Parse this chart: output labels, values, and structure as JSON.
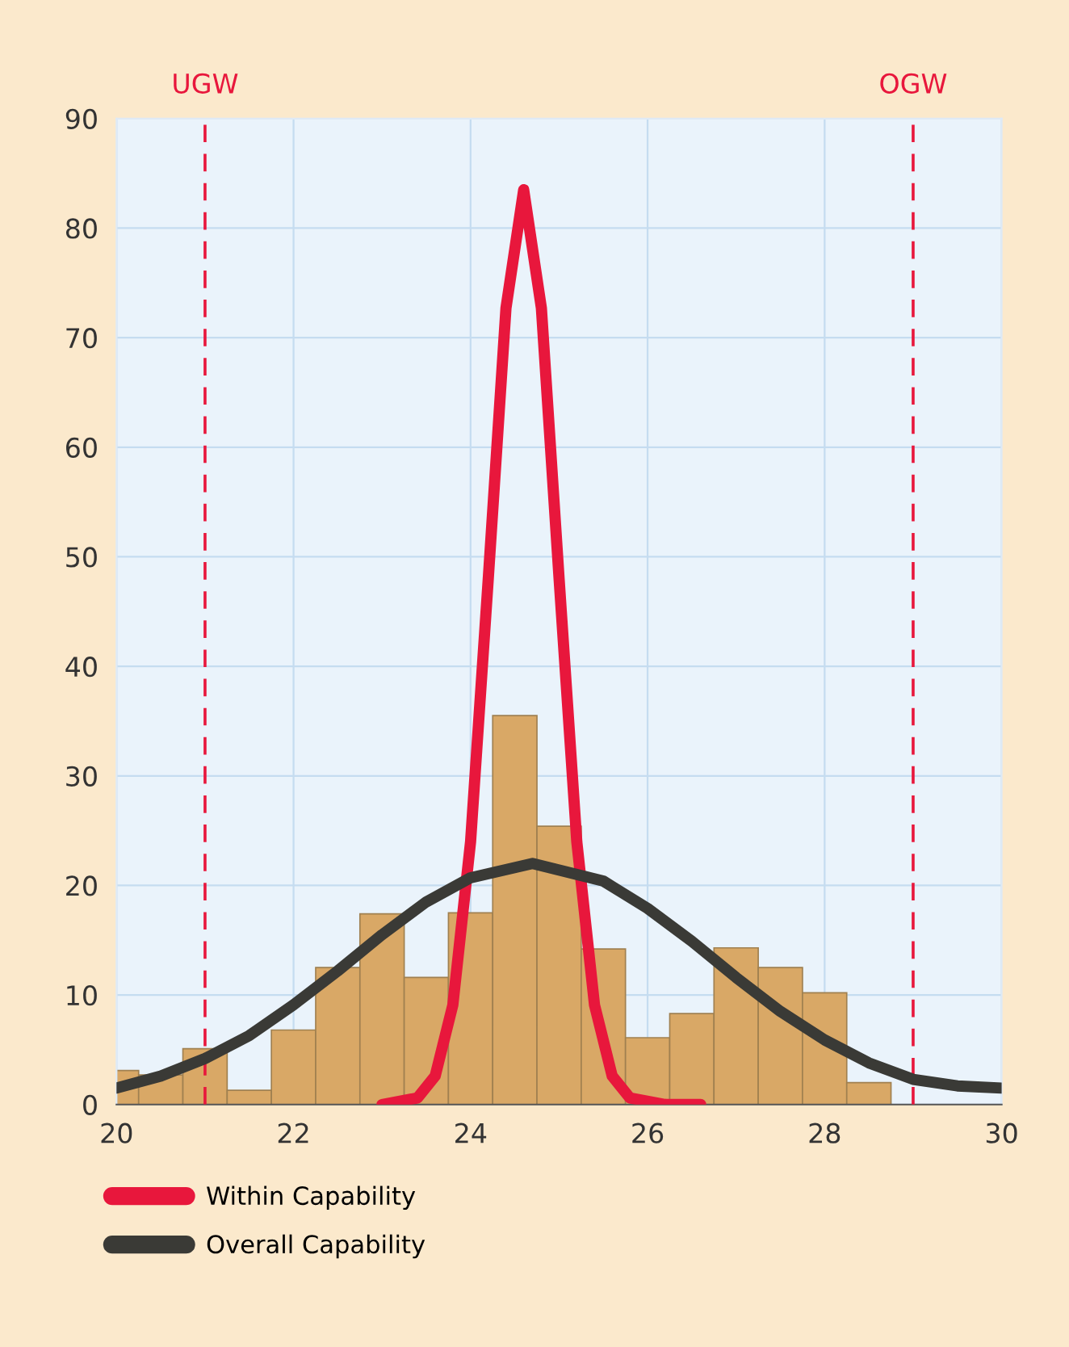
{
  "chart_data": {
    "type": "histogram",
    "bins": [
      20,
      20.25,
      20.75,
      21.25,
      21.75,
      22.25,
      22.75,
      23.25,
      23.75,
      24.25,
      24.75,
      25.25,
      25.75,
      26.25,
      26.75,
      27.25,
      27.75,
      28.25,
      28.75
    ],
    "values": [
      3.1,
      2.7,
      5.1,
      1.3,
      6.8,
      12.5,
      17.4,
      11.6,
      17.5,
      35.5,
      25.4,
      14.2,
      6.1,
      8.3,
      14.3,
      12.5,
      10.2,
      2
    ],
    "color": "#d9a866",
    "series": [
      {
        "type": "line",
        "name": "Within Capability",
        "color": "#e8173c",
        "x": [
          23.0,
          23.4,
          23.6,
          23.8,
          24.0,
          24.2,
          24.4,
          24.6,
          24.8,
          25.0,
          25.2,
          25.4,
          25.6,
          25.8,
          26.2,
          26.6
        ],
        "values": [
          0,
          0.6,
          2.6,
          9.1,
          24.0,
          48.0,
          72.7,
          83.5,
          72.7,
          48.0,
          24.0,
          9.1,
          2.6,
          0.6,
          0,
          0
        ]
      },
      {
        "type": "line",
        "name": "Overall Capability",
        "color": "#3a3a36",
        "x": [
          20,
          20.5,
          21,
          21.5,
          22,
          22.5,
          23,
          23.5,
          24,
          24.7,
          25.5,
          26,
          26.5,
          27,
          27.5,
          28,
          28.5,
          29,
          29.5,
          30
        ],
        "values": [
          1.5,
          2.6,
          4.2,
          6.3,
          9.1,
          12.2,
          15.5,
          18.5,
          20.7,
          22,
          20.4,
          17.9,
          14.9,
          11.6,
          8.5,
          5.9,
          3.8,
          2.3,
          1.7,
          1.5
        ]
      }
    ],
    "xlim": [
      20,
      30
    ],
    "ylim": [
      0,
      90
    ],
    "xticks": [
      20,
      22,
      24,
      26,
      28,
      30
    ],
    "yticks": [
      0,
      10,
      20,
      30,
      40,
      50,
      60,
      70,
      80,
      90
    ],
    "ref_lines": [
      {
        "axis": "x",
        "value": 21,
        "label": "UGW",
        "color": "#e8173c",
        "line_style": "dashed"
      },
      {
        "axis": "x",
        "value": 29,
        "label": "OGW",
        "color": "#e8173c",
        "line_style": "dashed"
      }
    ],
    "grid": true,
    "legend": "bottom left",
    "line_style": "solid",
    "marker": "none"
  }
}
